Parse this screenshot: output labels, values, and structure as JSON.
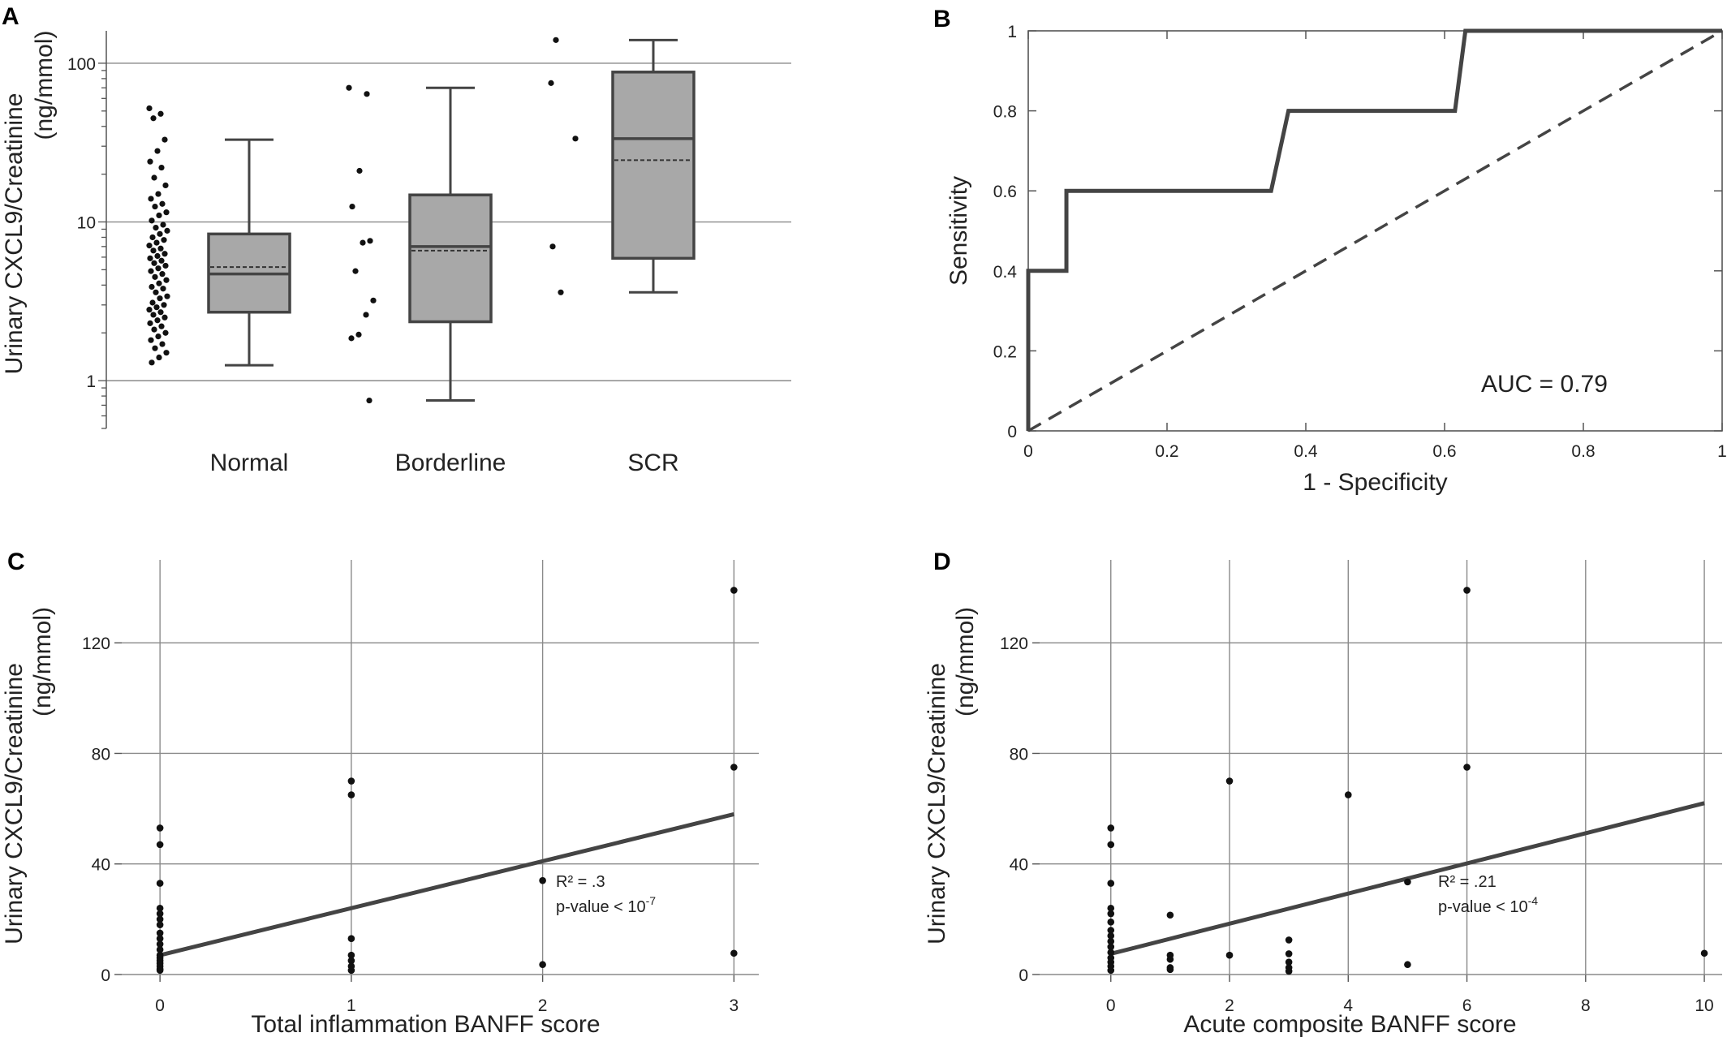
{
  "chart_data": [
    {
      "panel": "A",
      "type": "box",
      "ylabel_line1": "Urinary CXCL9/Creatinine",
      "ylabel_line2": "(ng/mmol)",
      "yscale": "log",
      "ylim": [
        0.5,
        160
      ],
      "yticks": [
        1,
        10,
        100
      ],
      "ytick_labels": [
        "1",
        "10",
        "100"
      ],
      "grid": "horizontal",
      "categories": [
        "Normal",
        "Borderline",
        "SCR"
      ],
      "boxes": [
        {
          "category": "Normal",
          "whisker_low": 1.25,
          "q1": 2.7,
          "median": 4.7,
          "mean": 5.2,
          "q3": 8.4,
          "whisker_high": 33
        },
        {
          "category": "Borderline",
          "whisker_low": 0.75,
          "q1": 2.35,
          "median": 7.0,
          "mean": 6.6,
          "q3": 14.8,
          "whisker_high": 70
        },
        {
          "category": "SCR",
          "whisker_low": 3.6,
          "q1": 5.9,
          "median": 33.5,
          "mean": 24.5,
          "q3": 88,
          "whisker_high": 140
        }
      ],
      "points": [
        {
          "category": "Normal",
          "values": [
            52,
            48,
            45,
            33,
            28,
            24,
            22,
            19,
            17,
            15,
            14,
            13,
            12.5,
            11.5,
            11,
            10.2,
            9.6,
            9.2,
            8.8,
            8.4,
            8.0,
            7.7,
            7.4,
            7.1,
            6.8,
            6.6,
            6.3,
            6.1,
            5.9,
            5.7,
            5.5,
            5.3,
            5.1,
            4.9,
            4.7,
            4.5,
            4.3,
            4.1,
            3.9,
            3.8,
            3.6,
            3.4,
            3.3,
            3.1,
            3.0,
            2.9,
            2.8,
            2.7,
            2.6,
            2.5,
            2.4,
            2.3,
            2.2,
            2.1,
            2.0,
            1.9,
            1.8,
            1.7,
            1.6,
            1.5,
            1.4,
            1.3
          ]
        },
        {
          "category": "Borderline",
          "values": [
            70,
            64,
            21,
            12.5,
            7.6,
            7.4,
            4.9,
            3.2,
            2.6,
            1.95,
            1.85,
            0.75
          ]
        },
        {
          "category": "SCR",
          "values": [
            140,
            75,
            33.5,
            7,
            3.6
          ]
        }
      ]
    },
    {
      "panel": "B",
      "type": "line",
      "xlabel": "1 - Specificity",
      "ylabel": "Sensitivity",
      "xlim": [
        0,
        1
      ],
      "ylim": [
        0,
        1
      ],
      "xticks": [
        0,
        0.2,
        0.4,
        0.6,
        0.8,
        1
      ],
      "xtick_labels": [
        "0",
        "0.2",
        "0.4",
        "0.6",
        "0.8",
        "1"
      ],
      "yticks": [
        0,
        0.2,
        0.4,
        0.6,
        0.8,
        1
      ],
      "ytick_labels": [
        "0",
        "0.2",
        "0.4",
        "0.6",
        "0.8",
        "1"
      ],
      "annotation": "AUC = 0.79",
      "series": [
        {
          "style": "solid",
          "x": [
            0,
            0,
            0.055,
            0.055,
            0.35,
            0.375,
            0.615,
            0.63,
            1
          ],
          "y": [
            0,
            0.4,
            0.4,
            0.6,
            0.6,
            0.8,
            0.8,
            1,
            1
          ]
        },
        {
          "style": "dashed",
          "x": [
            0,
            1
          ],
          "y": [
            0,
            1
          ]
        }
      ]
    },
    {
      "panel": "C",
      "type": "scatter",
      "xlabel": "Total inflammation BANFF score",
      "ylabel_line1": "Urinary CXCL9/Creatinine",
      "ylabel_line2": "(ng/mmol)",
      "xlim": [
        -0.2,
        3.13
      ],
      "ylim": [
        0,
        150
      ],
      "xticks": [
        0,
        1,
        2,
        3
      ],
      "xtick_labels": [
        "0",
        "1",
        "2",
        "3"
      ],
      "yticks": [
        0,
        40,
        80,
        120
      ],
      "ytick_labels": [
        "0",
        "40",
        "80",
        "120"
      ],
      "grid": "both",
      "points": [
        {
          "x": 0,
          "y": 53
        },
        {
          "x": 0,
          "y": 47
        },
        {
          "x": 0,
          "y": 33
        },
        {
          "x": 0,
          "y": 24
        },
        {
          "x": 0,
          "y": 22
        },
        {
          "x": 0,
          "y": 20
        },
        {
          "x": 0,
          "y": 18
        },
        {
          "x": 0,
          "y": 15
        },
        {
          "x": 0,
          "y": 13
        },
        {
          "x": 0,
          "y": 11
        },
        {
          "x": 0,
          "y": 9
        },
        {
          "x": 0,
          "y": 7
        },
        {
          "x": 0,
          "y": 6
        },
        {
          "x": 0,
          "y": 5
        },
        {
          "x": 0,
          "y": 4
        },
        {
          "x": 0,
          "y": 3
        },
        {
          "x": 0,
          "y": 2
        },
        {
          "x": 0,
          "y": 1.5
        },
        {
          "x": 1,
          "y": 70
        },
        {
          "x": 1,
          "y": 65
        },
        {
          "x": 1,
          "y": 13
        },
        {
          "x": 1,
          "y": 7
        },
        {
          "x": 1,
          "y": 5
        },
        {
          "x": 1,
          "y": 3
        },
        {
          "x": 1,
          "y": 1.5
        },
        {
          "x": 2,
          "y": 34
        },
        {
          "x": 2,
          "y": 3.6
        },
        {
          "x": 3,
          "y": 139
        },
        {
          "x": 3,
          "y": 75
        },
        {
          "x": 3,
          "y": 7.7
        }
      ],
      "fit_line": {
        "x": [
          0,
          3
        ],
        "y": [
          7,
          58
        ]
      },
      "annotation": {
        "r2_label": "R²",
        "r2_value": " = .3",
        "p_label": "p-value < 10",
        "p_exp": "-7"
      }
    },
    {
      "panel": "D",
      "type": "scatter",
      "xlabel": "Acute composite BANFF score",
      "ylabel_line1": "Urinary CXCL9/Creatinine",
      "ylabel_line2": "(ng/mmol)",
      "xlim": [
        -1.2,
        10.3
      ],
      "ylim": [
        0,
        150
      ],
      "xticks": [
        0,
        2,
        4,
        6,
        8,
        10
      ],
      "xtick_labels": [
        "0",
        "2",
        "4",
        "6",
        "8",
        "10"
      ],
      "yticks": [
        0,
        40,
        80,
        120
      ],
      "ytick_labels": [
        "0",
        "40",
        "80",
        "120"
      ],
      "grid": "both",
      "points": [
        {
          "x": 0,
          "y": 53
        },
        {
          "x": 0,
          "y": 47
        },
        {
          "x": 0,
          "y": 33
        },
        {
          "x": 0,
          "y": 24
        },
        {
          "x": 0,
          "y": 22
        },
        {
          "x": 0,
          "y": 19
        },
        {
          "x": 0,
          "y": 16
        },
        {
          "x": 0,
          "y": 14
        },
        {
          "x": 0,
          "y": 12
        },
        {
          "x": 0,
          "y": 10
        },
        {
          "x": 0,
          "y": 8
        },
        {
          "x": 0,
          "y": 6
        },
        {
          "x": 0,
          "y": 4.5
        },
        {
          "x": 0,
          "y": 3
        },
        {
          "x": 0,
          "y": 1.5
        },
        {
          "x": 1,
          "y": 21.5
        },
        {
          "x": 1,
          "y": 7
        },
        {
          "x": 1,
          "y": 5.5
        },
        {
          "x": 1,
          "y": 2.5
        },
        {
          "x": 1,
          "y": 1.8
        },
        {
          "x": 2,
          "y": 70
        },
        {
          "x": 2,
          "y": 7
        },
        {
          "x": 3,
          "y": 12.5
        },
        {
          "x": 3,
          "y": 7.5
        },
        {
          "x": 3,
          "y": 4.5
        },
        {
          "x": 3,
          "y": 2.5
        },
        {
          "x": 3,
          "y": 1.2
        },
        {
          "x": 4,
          "y": 65
        },
        {
          "x": 5,
          "y": 33.5
        },
        {
          "x": 5,
          "y": 3.6
        },
        {
          "x": 6,
          "y": 139
        },
        {
          "x": 6,
          "y": 75
        },
        {
          "x": 10,
          "y": 7.7
        }
      ],
      "fit_line": {
        "x": [
          0,
          10
        ],
        "y": [
          7.5,
          62
        ]
      },
      "annotation": {
        "r2_label": "R²",
        "r2_value": " = .21",
        "p_label": "p-value < 10",
        "p_exp": "-4"
      }
    }
  ]
}
